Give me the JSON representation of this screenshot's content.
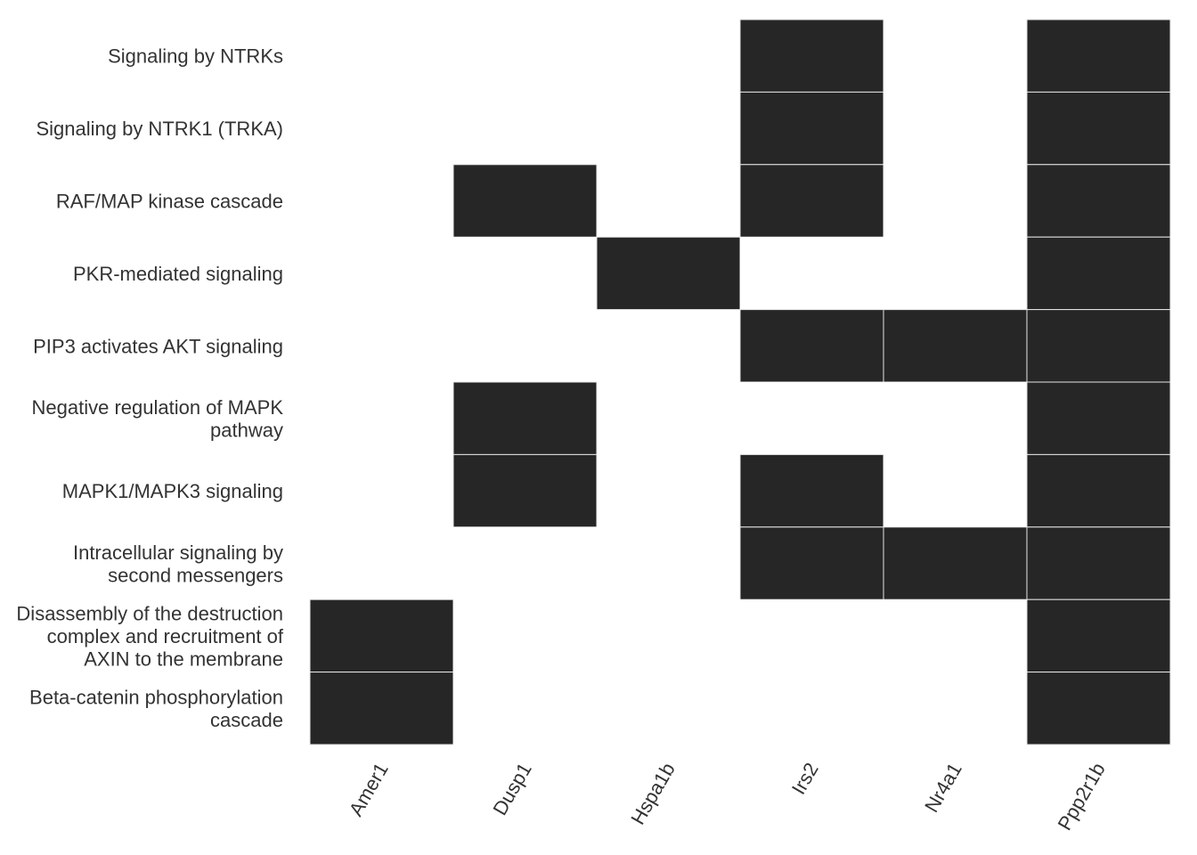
{
  "chart_data": {
    "type": "heatmap",
    "columns": [
      "Amer1",
      "Dusp1",
      "Hspa1b",
      "Irs2",
      "Nr4a1",
      "Ppp2r1b"
    ],
    "rows": [
      {
        "label": "Signaling by NTRKs",
        "values": [
          0,
          0,
          0,
          1,
          0,
          1
        ]
      },
      {
        "label": "Signaling by NTRK1 (TRKA)",
        "values": [
          0,
          0,
          0,
          1,
          0,
          1
        ]
      },
      {
        "label": "RAF/MAP kinase cascade",
        "values": [
          0,
          1,
          0,
          1,
          0,
          1
        ]
      },
      {
        "label": "PKR-mediated signaling",
        "values": [
          0,
          0,
          1,
          0,
          0,
          1
        ]
      },
      {
        "label": "PIP3 activates AKT signaling",
        "values": [
          0,
          0,
          0,
          1,
          1,
          1
        ]
      },
      {
        "label": "Negative regulation of MAPK pathway",
        "values": [
          0,
          1,
          0,
          0,
          0,
          1
        ]
      },
      {
        "label": "MAPK1/MAPK3 signaling",
        "values": [
          0,
          1,
          0,
          1,
          0,
          1
        ]
      },
      {
        "label": "Intracellular signaling by second messengers",
        "values": [
          0,
          0,
          0,
          1,
          1,
          1
        ]
      },
      {
        "label": "Disassembly of the destruction complex and recruitment of AXIN to the membrane",
        "values": [
          1,
          0,
          0,
          0,
          0,
          1
        ]
      },
      {
        "label": "Beta-catenin phosphorylation cascade",
        "values": [
          1,
          0,
          0,
          0,
          0,
          1
        ]
      }
    ],
    "colors": {
      "filled": "#262626",
      "empty": "#ffffff",
      "cell_border": "#e6e6e6",
      "text": "#333333"
    },
    "legend": "none",
    "grid": false
  }
}
